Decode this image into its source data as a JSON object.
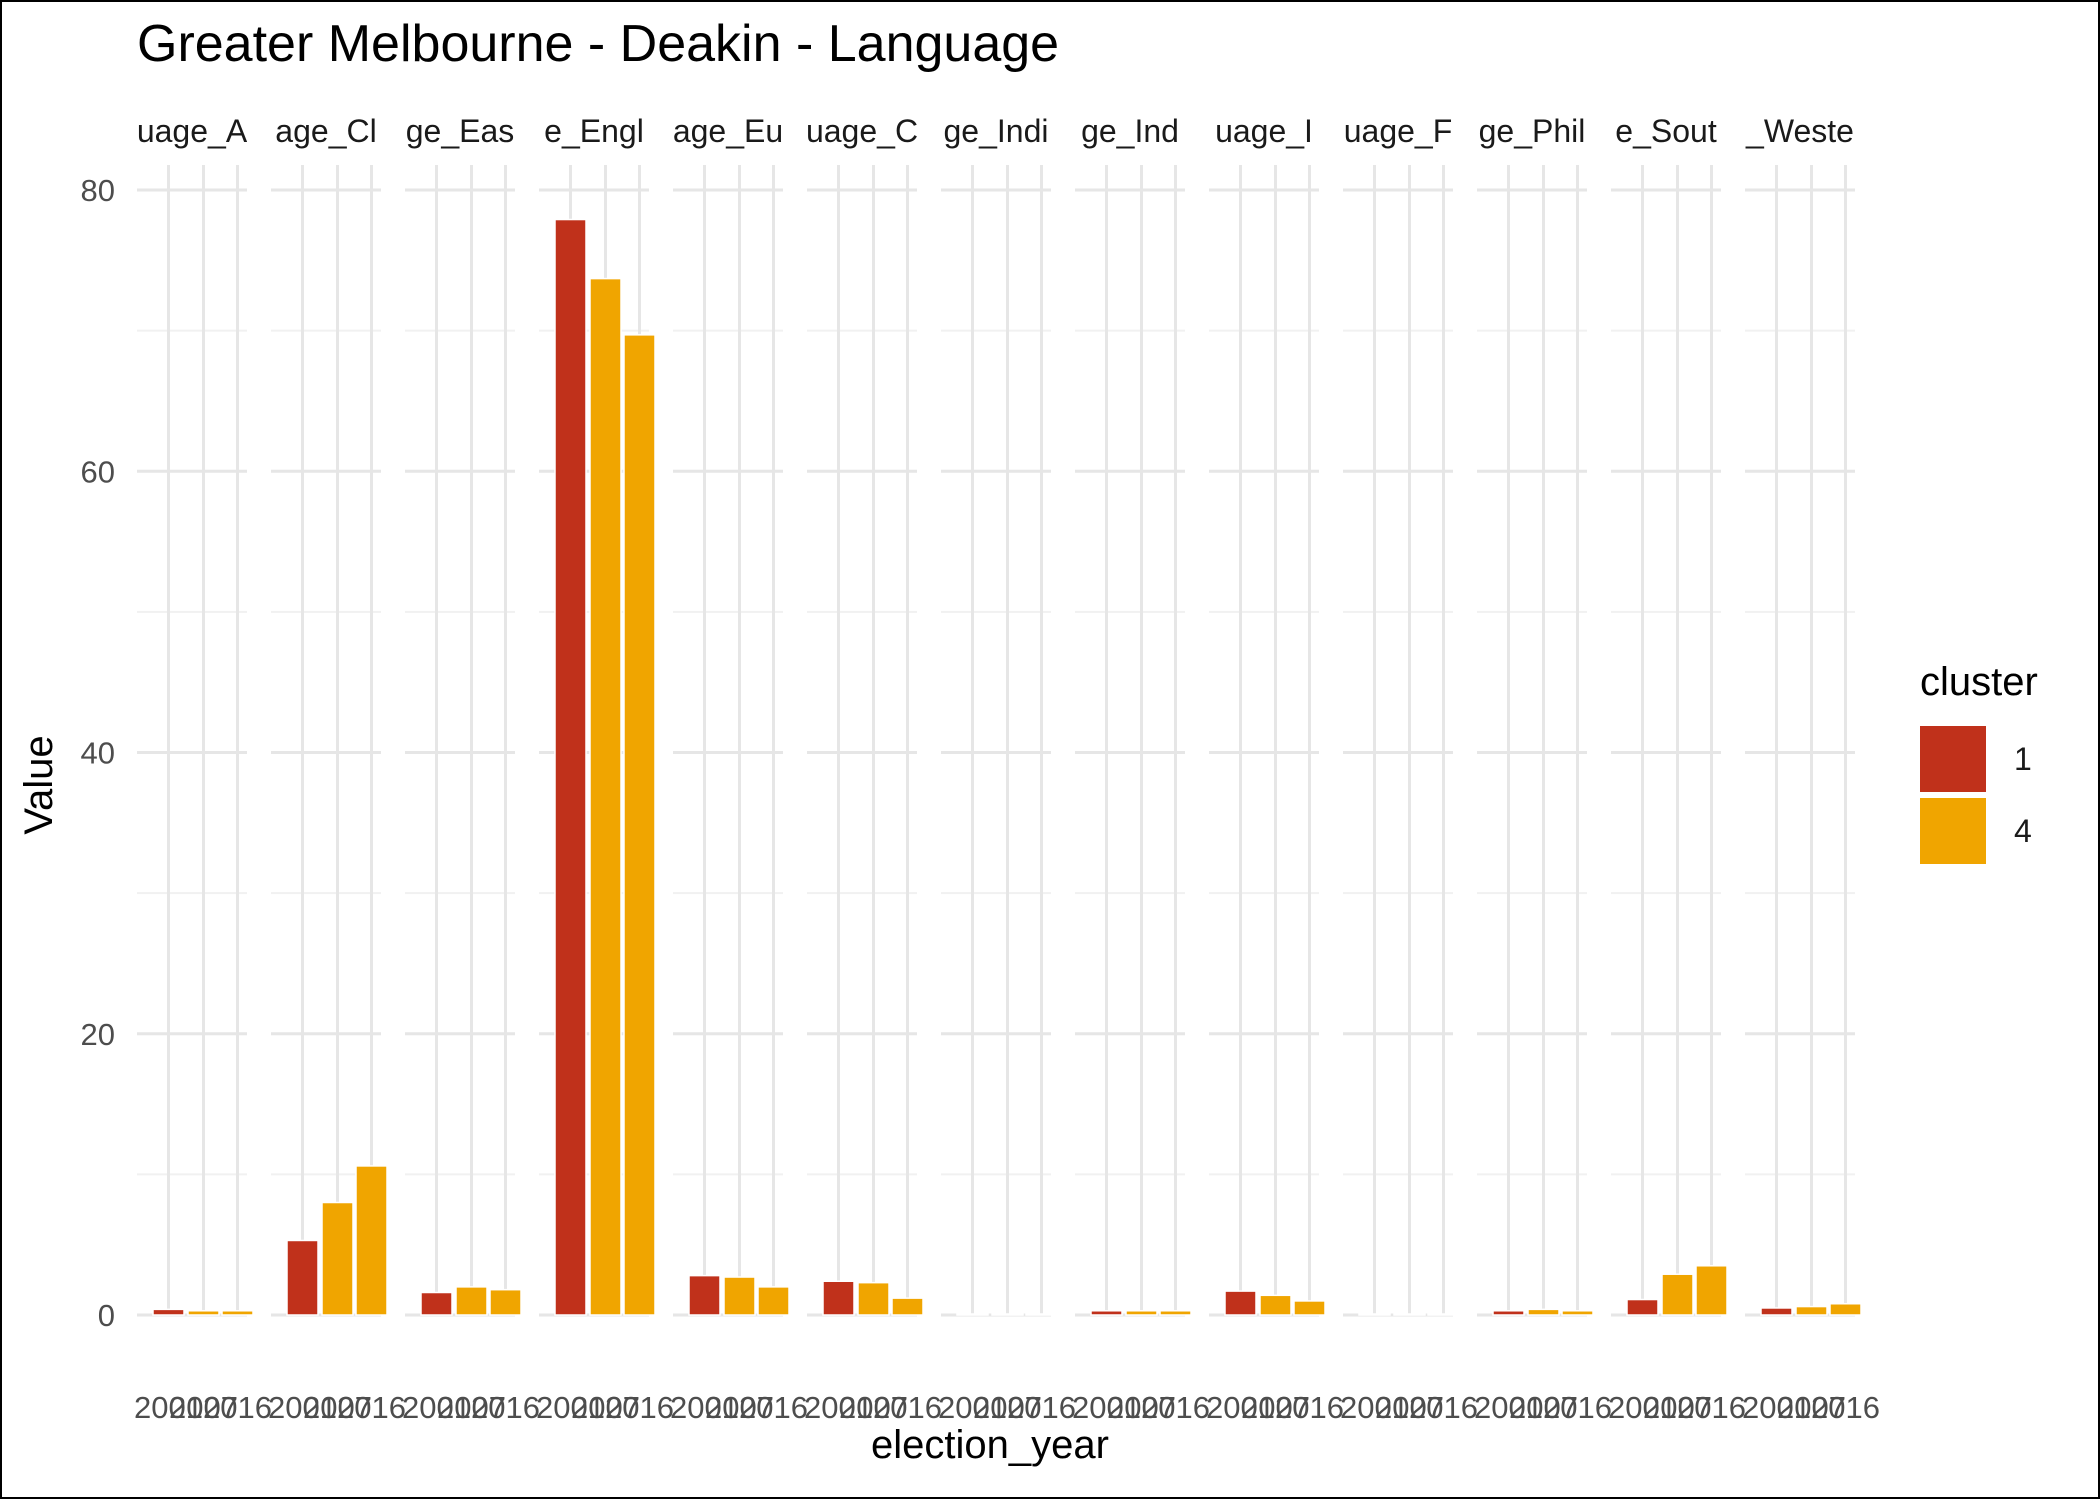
{
  "title": "Greater Melbourne - Deakin - Language",
  "chart_data": {
    "type": "bar",
    "title": "Greater Melbourne - Deakin - Language",
    "xlabel": "election_year",
    "ylabel": "Value",
    "ylim": [
      0,
      80
    ],
    "y_ticks": [
      0,
      20,
      40,
      60,
      80
    ],
    "x_tick_labels": [
      "2001",
      "2007",
      "2016"
    ],
    "facets": [
      "uage_A",
      "age_Cl",
      "ge_Eas",
      "e_Engl",
      "age_Eu",
      "uage_C",
      "ge_Indi",
      "ge_Ind",
      "uage_I",
      "uage_F",
      "ge_Phil",
      "e_Sout",
      "_Weste"
    ],
    "legend": {
      "title": "cluster",
      "placement": "right",
      "entries": [
        "1",
        "4"
      ]
    },
    "colors": {
      "1": "#c0311b",
      "4": "#f0a500"
    },
    "bar_clusters": [
      "1",
      "4",
      "4"
    ],
    "values": [
      [
        0.4,
        0.3,
        0.3
      ],
      [
        5.3,
        8.0,
        10.6
      ],
      [
        1.6,
        2.0,
        1.8
      ],
      [
        77.9,
        73.7,
        69.7
      ],
      [
        2.8,
        2.7,
        2.0
      ],
      [
        2.4,
        2.3,
        1.2
      ],
      [
        0.05,
        0.05,
        0.05
      ],
      [
        0.3,
        0.3,
        0.3
      ],
      [
        1.7,
        1.4,
        1.0
      ],
      [
        0.05,
        0.05,
        0.05
      ],
      [
        0.3,
        0.4,
        0.3
      ],
      [
        1.1,
        2.9,
        3.5
      ],
      [
        0.5,
        0.6,
        0.8
      ]
    ],
    "grid": true
  }
}
